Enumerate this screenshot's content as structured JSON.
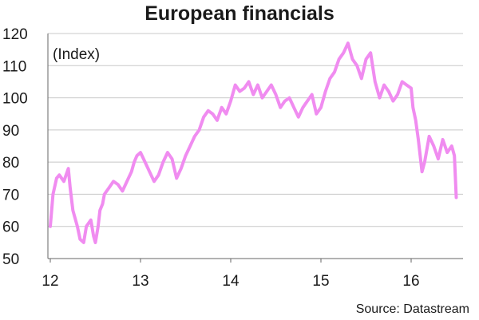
{
  "chart_data": {
    "type": "line",
    "title": "European financials",
    "annotation": "(Index)",
    "source": "Source: Datastream",
    "ylim": [
      50,
      120
    ],
    "xlim": [
      12,
      16.6
    ],
    "yticks": [
      50,
      60,
      70,
      80,
      90,
      100,
      110,
      120
    ],
    "xticks": [
      12,
      13,
      14,
      15,
      16
    ],
    "ytick_labels": [
      "50",
      "60",
      "70",
      "80",
      "90",
      "100",
      "110",
      "120"
    ],
    "xtick_labels": [
      "12",
      "13",
      "14",
      "15",
      "16"
    ],
    "grid": true,
    "line_color": "#f08cf0",
    "series": [
      {
        "x": [
          12.0,
          12.03,
          12.07,
          12.1,
          12.15,
          12.2,
          12.22,
          12.25,
          12.3,
          12.33,
          12.37,
          12.4,
          12.45,
          12.48,
          12.5,
          12.53,
          12.55,
          12.58,
          12.6,
          12.65,
          12.7,
          12.75,
          12.8,
          12.85,
          12.9,
          12.93,
          12.96,
          13.0,
          13.05,
          13.1,
          13.15,
          13.2,
          13.25,
          13.3,
          13.35,
          13.4,
          13.45,
          13.5,
          13.55,
          13.6,
          13.65,
          13.7,
          13.75,
          13.8,
          13.85,
          13.9,
          13.95,
          14.0,
          14.05,
          14.1,
          14.15,
          14.2,
          14.25,
          14.3,
          14.35,
          14.4,
          14.45,
          14.5,
          14.55,
          14.6,
          14.65,
          14.7,
          14.75,
          14.8,
          14.85,
          14.9,
          14.95,
          15.0,
          15.05,
          15.1,
          15.15,
          15.2,
          15.25,
          15.3,
          15.35,
          15.4,
          15.45,
          15.5,
          15.55,
          15.6,
          15.65,
          15.7,
          15.75,
          15.8,
          15.85,
          15.9,
          15.95,
          16.0,
          16.02,
          16.05,
          16.08,
          16.12,
          16.15,
          16.2,
          16.25,
          16.3,
          16.35,
          16.4,
          16.45,
          16.48,
          16.5
        ],
        "y": [
          60,
          70,
          75,
          76,
          74,
          78,
          72,
          65,
          60,
          56,
          55,
          60,
          62,
          57,
          55,
          60,
          65,
          67,
          70,
          72,
          74,
          73,
          71,
          74,
          77,
          80,
          82,
          83,
          80,
          77,
          74,
          76,
          80,
          83,
          81,
          75,
          78,
          82,
          85,
          88,
          90,
          94,
          96,
          95,
          93,
          97,
          95,
          99,
          104,
          102,
          103,
          105,
          101,
          104,
          100,
          102,
          104,
          101,
          97,
          99,
          100,
          97,
          94,
          97,
          99,
          101,
          95,
          97,
          102,
          106,
          108,
          112,
          114,
          117,
          112,
          110,
          106,
          112,
          114,
          105,
          100,
          104,
          102,
          99,
          101,
          105,
          104,
          103,
          97,
          93,
          87,
          77,
          80,
          88,
          85,
          81,
          87,
          83,
          85,
          82,
          69
        ]
      }
    ]
  }
}
